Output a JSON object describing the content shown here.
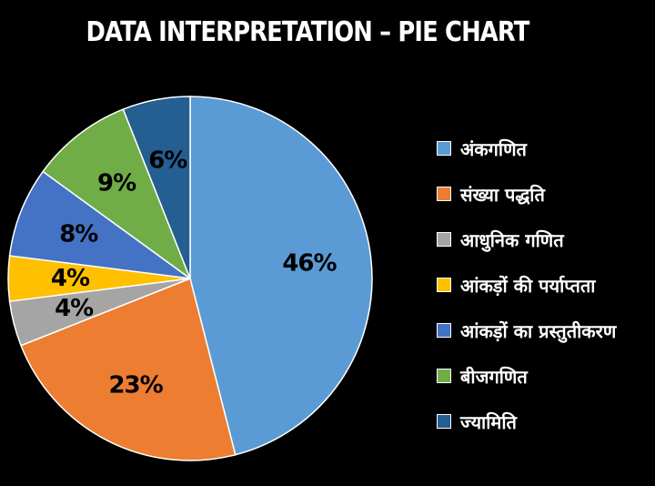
{
  "chart_data": {
    "type": "pie",
    "title": "DATA INTERPRETATION – PIE CHART",
    "slices": [
      {
        "name": "अंकगणित",
        "value": 46,
        "label": "46%",
        "color": "#5B9BD5"
      },
      {
        "name": "संख्या पद्धति",
        "value": 23,
        "label": "23%",
        "color": "#ED7D31"
      },
      {
        "name": "आधुनिक गणित",
        "value": 4,
        "label": "4%",
        "color": "#A5A5A5"
      },
      {
        "name": "आंकड़ों की पर्याप्तता",
        "value": 4,
        "label": "4%",
        "color": "#FFC000"
      },
      {
        "name": "आंकड़ों का प्रस्तुतीकरण",
        "value": 8,
        "label": "8%",
        "color": "#4472C4"
      },
      {
        "name": "बीजगणित",
        "value": 9,
        "label": "9%",
        "color": "#70AD47"
      },
      {
        "name": "ज्यामिति",
        "value": 6,
        "label": "6%",
        "color": "#255E91"
      }
    ],
    "start": "12 o'clock",
    "direction": "clockwise",
    "legend": "right",
    "background": "#000000"
  }
}
